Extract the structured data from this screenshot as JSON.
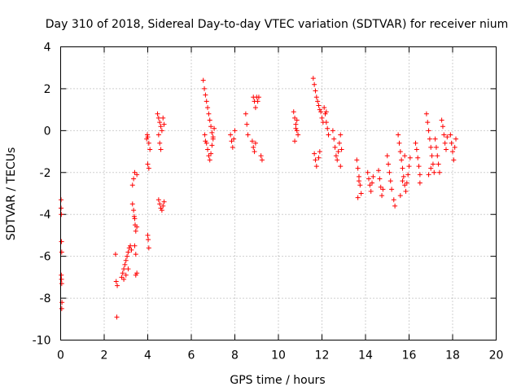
{
  "chart_data": {
    "type": "scatter",
    "title": "Day 310 of 2018, Sidereal Day-to-day VTEC variation (SDTVAR) for receiver nium",
    "xlabel": "GPS time / hours",
    "ylabel": "SDTVAR / TECUs",
    "xlim": [
      0,
      20
    ],
    "ylim": [
      -10,
      4
    ],
    "xticks": [
      0,
      2,
      4,
      6,
      8,
      10,
      12,
      14,
      16,
      18,
      20
    ],
    "yticks": [
      -10,
      -8,
      -6,
      -4,
      -2,
      0,
      2,
      4
    ],
    "grid": true,
    "marker": "+",
    "color": "#ff0000",
    "series": [
      {
        "name": "SDTVAR",
        "points": [
          [
            0.02,
            -3.3
          ],
          [
            0.02,
            -3.7
          ],
          [
            0.03,
            -4.0
          ],
          [
            0.04,
            -5.3
          ],
          [
            0.05,
            -5.8
          ],
          [
            0.03,
            -6.9
          ],
          [
            0.04,
            -7.1
          ],
          [
            0.05,
            -7.3
          ],
          [
            0.06,
            -8.2
          ],
          [
            0.05,
            -8.5
          ],
          [
            2.52,
            -5.9
          ],
          [
            2.55,
            -7.2
          ],
          [
            2.6,
            -7.4
          ],
          [
            2.58,
            -8.9
          ],
          [
            2.8,
            -7.0
          ],
          [
            2.85,
            -6.8
          ],
          [
            2.9,
            -6.6
          ],
          [
            2.95,
            -6.4
          ],
          [
            3.0,
            -6.2
          ],
          [
            3.05,
            -6.0
          ],
          [
            3.1,
            -5.8
          ],
          [
            3.15,
            -5.6
          ],
          [
            3.2,
            -5.5
          ],
          [
            3.25,
            -5.7
          ],
          [
            2.9,
            -7.1
          ],
          [
            3.0,
            -6.9
          ],
          [
            3.1,
            -6.6
          ],
          [
            3.3,
            -3.5
          ],
          [
            3.35,
            -3.8
          ],
          [
            3.4,
            -4.2
          ],
          [
            3.42,
            -4.5
          ],
          [
            3.45,
            -4.8
          ],
          [
            3.5,
            -4.6
          ],
          [
            3.38,
            -4.1
          ],
          [
            3.3,
            -2.6
          ],
          [
            3.35,
            -2.3
          ],
          [
            3.4,
            -2.0
          ],
          [
            3.5,
            -2.1
          ],
          [
            3.4,
            -5.5
          ],
          [
            3.45,
            -5.9
          ],
          [
            3.5,
            -6.8
          ],
          [
            3.45,
            -6.9
          ],
          [
            3.95,
            -0.4
          ],
          [
            4.0,
            -0.3
          ],
          [
            4.05,
            -0.6
          ],
          [
            4.1,
            -0.9
          ],
          [
            3.98,
            -0.2
          ],
          [
            4.0,
            -1.6
          ],
          [
            4.05,
            -1.8
          ],
          [
            4.02,
            -5.2
          ],
          [
            4.05,
            -5.6
          ],
          [
            4.0,
            -5.0
          ],
          [
            4.45,
            0.8
          ],
          [
            4.5,
            0.6
          ],
          [
            4.55,
            0.4
          ],
          [
            4.6,
            0.2
          ],
          [
            4.5,
            -0.2
          ],
          [
            4.55,
            -0.6
          ],
          [
            4.6,
            -0.9
          ],
          [
            4.65,
            0.0
          ],
          [
            4.7,
            0.6
          ],
          [
            4.75,
            0.3
          ],
          [
            4.5,
            -3.3
          ],
          [
            4.55,
            -3.5
          ],
          [
            4.6,
            -3.7
          ],
          [
            4.65,
            -3.8
          ],
          [
            4.7,
            -3.6
          ],
          [
            4.75,
            -3.4
          ],
          [
            6.55,
            2.4
          ],
          [
            6.6,
            2.0
          ],
          [
            6.65,
            1.7
          ],
          [
            6.7,
            1.4
          ],
          [
            6.75,
            1.1
          ],
          [
            6.8,
            0.8
          ],
          [
            6.85,
            0.5
          ],
          [
            6.9,
            0.2
          ],
          [
            6.95,
            -0.1
          ],
          [
            7.0,
            -0.4
          ],
          [
            6.7,
            -0.6
          ],
          [
            6.75,
            -0.9
          ],
          [
            6.8,
            -1.2
          ],
          [
            6.85,
            -1.4
          ],
          [
            6.9,
            -1.1
          ],
          [
            6.95,
            -0.7
          ],
          [
            7.0,
            -0.3
          ],
          [
            7.05,
            0.1
          ],
          [
            6.62,
            -0.2
          ],
          [
            6.65,
            -0.5
          ],
          [
            7.8,
            -0.2
          ],
          [
            7.85,
            -0.5
          ],
          [
            7.9,
            -0.8
          ],
          [
            7.95,
            -0.4
          ],
          [
            8.0,
            0.0
          ],
          [
            8.5,
            0.8
          ],
          [
            8.55,
            0.3
          ],
          [
            8.6,
            -0.2
          ],
          [
            8.85,
            1.6
          ],
          [
            8.9,
            1.4
          ],
          [
            8.95,
            1.1
          ],
          [
            9.0,
            1.6
          ],
          [
            9.05,
            1.4
          ],
          [
            9.1,
            1.6
          ],
          [
            8.8,
            -0.5
          ],
          [
            8.85,
            -0.8
          ],
          [
            8.9,
            -1.0
          ],
          [
            8.95,
            -0.6
          ],
          [
            9.2,
            -1.2
          ],
          [
            9.25,
            -1.4
          ],
          [
            10.7,
            0.9
          ],
          [
            10.75,
            0.6
          ],
          [
            10.8,
            0.3
          ],
          [
            10.85,
            0.0
          ],
          [
            10.9,
            -0.2
          ],
          [
            10.75,
            -0.5
          ],
          [
            10.8,
            0.1
          ],
          [
            10.85,
            0.5
          ],
          [
            11.6,
            2.5
          ],
          [
            11.65,
            2.2
          ],
          [
            11.7,
            1.9
          ],
          [
            11.75,
            1.6
          ],
          [
            11.8,
            1.4
          ],
          [
            11.85,
            1.2
          ],
          [
            11.9,
            1.0
          ],
          [
            11.95,
            0.9
          ],
          [
            12.0,
            0.6
          ],
          [
            12.05,
            0.4
          ],
          [
            11.65,
            -1.1
          ],
          [
            11.7,
            -1.4
          ],
          [
            11.75,
            -1.7
          ],
          [
            11.85,
            -1.3
          ],
          [
            11.9,
            -1.0
          ],
          [
            12.1,
            1.1
          ],
          [
            12.15,
            0.8
          ],
          [
            12.2,
            0.4
          ],
          [
            12.25,
            0.1
          ],
          [
            12.3,
            -0.2
          ],
          [
            12.2,
            0.9
          ],
          [
            12.5,
            0.0
          ],
          [
            12.55,
            -0.4
          ],
          [
            12.6,
            -0.8
          ],
          [
            12.65,
            -1.2
          ],
          [
            12.7,
            -1.4
          ],
          [
            12.75,
            -1.0
          ],
          [
            12.8,
            -0.6
          ],
          [
            12.85,
            -0.2
          ],
          [
            12.9,
            -0.9
          ],
          [
            12.85,
            -1.7
          ],
          [
            13.6,
            -1.4
          ],
          [
            13.65,
            -1.8
          ],
          [
            13.7,
            -2.2
          ],
          [
            13.75,
            -2.6
          ],
          [
            13.8,
            -3.0
          ],
          [
            13.65,
            -3.2
          ],
          [
            13.7,
            -2.4
          ],
          [
            14.1,
            -2.0
          ],
          [
            14.15,
            -2.3
          ],
          [
            14.2,
            -2.6
          ],
          [
            14.25,
            -2.9
          ],
          [
            14.3,
            -2.5
          ],
          [
            14.35,
            -2.2
          ],
          [
            14.6,
            -1.9
          ],
          [
            14.65,
            -2.3
          ],
          [
            14.7,
            -2.7
          ],
          [
            14.75,
            -3.1
          ],
          [
            14.8,
            -2.8
          ],
          [
            15.0,
            -1.2
          ],
          [
            15.05,
            -1.6
          ],
          [
            15.1,
            -2.0
          ],
          [
            15.15,
            -2.4
          ],
          [
            15.2,
            -2.8
          ],
          [
            15.3,
            -3.3
          ],
          [
            15.35,
            -3.6
          ],
          [
            15.5,
            -0.2
          ],
          [
            15.55,
            -0.6
          ],
          [
            15.6,
            -1.0
          ],
          [
            15.65,
            -1.4
          ],
          [
            15.7,
            -1.8
          ],
          [
            15.75,
            -2.2
          ],
          [
            15.8,
            -2.6
          ],
          [
            15.85,
            -2.9
          ],
          [
            15.9,
            -2.5
          ],
          [
            15.95,
            -2.1
          ],
          [
            16.0,
            -1.7
          ],
          [
            16.05,
            -1.3
          ],
          [
            15.6,
            -3.1
          ],
          [
            15.7,
            -2.4
          ],
          [
            15.8,
            -1.2
          ],
          [
            16.3,
            -0.6
          ],
          [
            16.35,
            -0.9
          ],
          [
            16.4,
            -1.3
          ],
          [
            16.45,
            -1.7
          ],
          [
            16.5,
            -2.1
          ],
          [
            16.5,
            -2.5
          ],
          [
            16.8,
            0.8
          ],
          [
            16.85,
            0.4
          ],
          [
            16.9,
            0.0
          ],
          [
            16.95,
            -0.4
          ],
          [
            17.0,
            -0.8
          ],
          [
            17.05,
            -1.2
          ],
          [
            17.1,
            -1.6
          ],
          [
            17.15,
            -2.0
          ],
          [
            16.9,
            -2.1
          ],
          [
            17.0,
            -1.8
          ],
          [
            17.2,
            -0.4
          ],
          [
            17.25,
            -0.8
          ],
          [
            17.3,
            -1.2
          ],
          [
            17.35,
            -1.6
          ],
          [
            17.4,
            -2.0
          ],
          [
            17.5,
            0.5
          ],
          [
            17.55,
            0.2
          ],
          [
            17.6,
            -0.2
          ],
          [
            17.65,
            -0.6
          ],
          [
            17.7,
            -0.9
          ],
          [
            17.75,
            -0.3
          ],
          [
            17.9,
            -0.2
          ],
          [
            17.95,
            -0.6
          ],
          [
            18.0,
            -1.0
          ],
          [
            18.05,
            -1.4
          ],
          [
            18.1,
            -0.8
          ],
          [
            18.15,
            -0.4
          ]
        ]
      }
    ]
  }
}
